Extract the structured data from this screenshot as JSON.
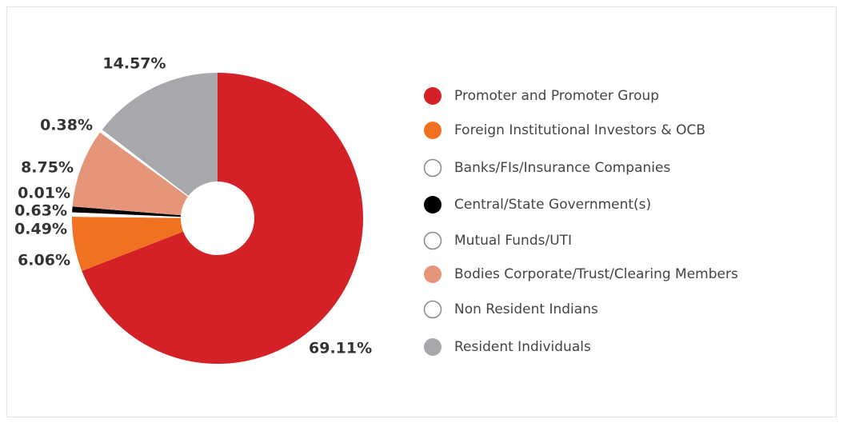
{
  "chart_data": {
    "type": "pie",
    "categories": [
      "Promoter and Promoter Group",
      "Foreign Institutional Investors & OCB",
      "Banks/FIs/Insurance Companies",
      "Central/State Government(s)",
      "Mutual Funds/UTI",
      "Bodies Corporate/Trust/Clearing Members",
      "Non Resident Indians",
      "Resident Individuals"
    ],
    "values": [
      69.11,
      6.06,
      0.49,
      0.63,
      0.01,
      8.75,
      0.38,
      14.57
    ],
    "value_labels": [
      "69.11%",
      "6.06%",
      "0.49%",
      "0.63%",
      "0.01%",
      "8.75%",
      "0.38%",
      "14.57%"
    ],
    "colors": [
      "#d42127",
      "#f07122",
      "#ffffff",
      "#000000",
      "#ffffff",
      "#e4957a",
      "#ffffff",
      "#a7a8ac"
    ],
    "donut": true
  }
}
